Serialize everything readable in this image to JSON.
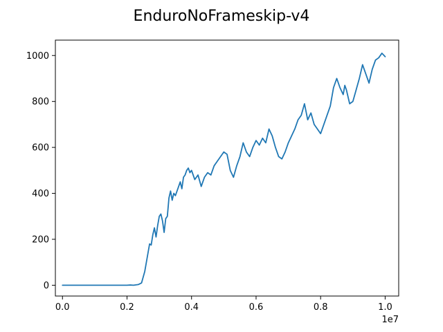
{
  "chart_data": {
    "type": "line",
    "title": "EnduroNoFrameskip-v4",
    "xlabel": "",
    "ylabel": "",
    "x_offset_label": "1e7",
    "xlim": [
      -0.022,
      1.042
    ],
    "ylim": [
      -47,
      1067
    ],
    "x_ticks": [
      0.0,
      0.2,
      0.4,
      0.6,
      0.8,
      1.0
    ],
    "x_tick_labels": [
      "0.0",
      "0.2",
      "0.4",
      "0.6",
      "0.8",
      "1.0"
    ],
    "y_ticks": [
      0,
      200,
      400,
      600,
      800,
      1000
    ],
    "y_tick_labels": [
      "0",
      "200",
      "400",
      "600",
      "800",
      "1000"
    ],
    "grid": false,
    "series": [
      {
        "color": "#1f77b4",
        "x": [
          0.0,
          0.05,
          0.1,
          0.15,
          0.2,
          0.21,
          0.22,
          0.235,
          0.245,
          0.255,
          0.26,
          0.265,
          0.27,
          0.275,
          0.28,
          0.285,
          0.29,
          0.295,
          0.3,
          0.305,
          0.31,
          0.315,
          0.32,
          0.325,
          0.33,
          0.335,
          0.34,
          0.345,
          0.35,
          0.355,
          0.36,
          0.365,
          0.37,
          0.375,
          0.38,
          0.385,
          0.39,
          0.395,
          0.4,
          0.41,
          0.42,
          0.43,
          0.44,
          0.45,
          0.46,
          0.47,
          0.48,
          0.49,
          0.5,
          0.51,
          0.52,
          0.53,
          0.54,
          0.55,
          0.56,
          0.57,
          0.58,
          0.59,
          0.6,
          0.61,
          0.62,
          0.63,
          0.64,
          0.65,
          0.66,
          0.67,
          0.68,
          0.69,
          0.7,
          0.71,
          0.72,
          0.73,
          0.74,
          0.75,
          0.76,
          0.77,
          0.78,
          0.79,
          0.8,
          0.81,
          0.82,
          0.83,
          0.84,
          0.85,
          0.86,
          0.87,
          0.875,
          0.88,
          0.89,
          0.9,
          0.91,
          0.92,
          0.93,
          0.94,
          0.95,
          0.96,
          0.97,
          0.98,
          0.99,
          1.0
        ],
        "y": [
          0,
          0,
          0,
          0,
          0,
          1,
          0,
          3,
          10,
          60,
          100,
          140,
          180,
          175,
          220,
          250,
          210,
          260,
          300,
          310,
          280,
          230,
          290,
          300,
          380,
          410,
          370,
          400,
          390,
          410,
          430,
          450,
          420,
          470,
          480,
          500,
          510,
          490,
          500,
          460,
          480,
          430,
          470,
          490,
          480,
          520,
          540,
          560,
          580,
          570,
          500,
          470,
          520,
          560,
          620,
          580,
          560,
          600,
          630,
          610,
          640,
          620,
          680,
          650,
          600,
          560,
          550,
          580,
          620,
          650,
          680,
          720,
          740,
          790,
          720,
          750,
          700,
          680,
          660,
          700,
          740,
          780,
          860,
          900,
          860,
          830,
          870,
          850,
          790,
          800,
          850,
          900,
          960,
          920,
          880,
          940,
          980,
          990,
          1010,
          995
        ]
      }
    ]
  }
}
